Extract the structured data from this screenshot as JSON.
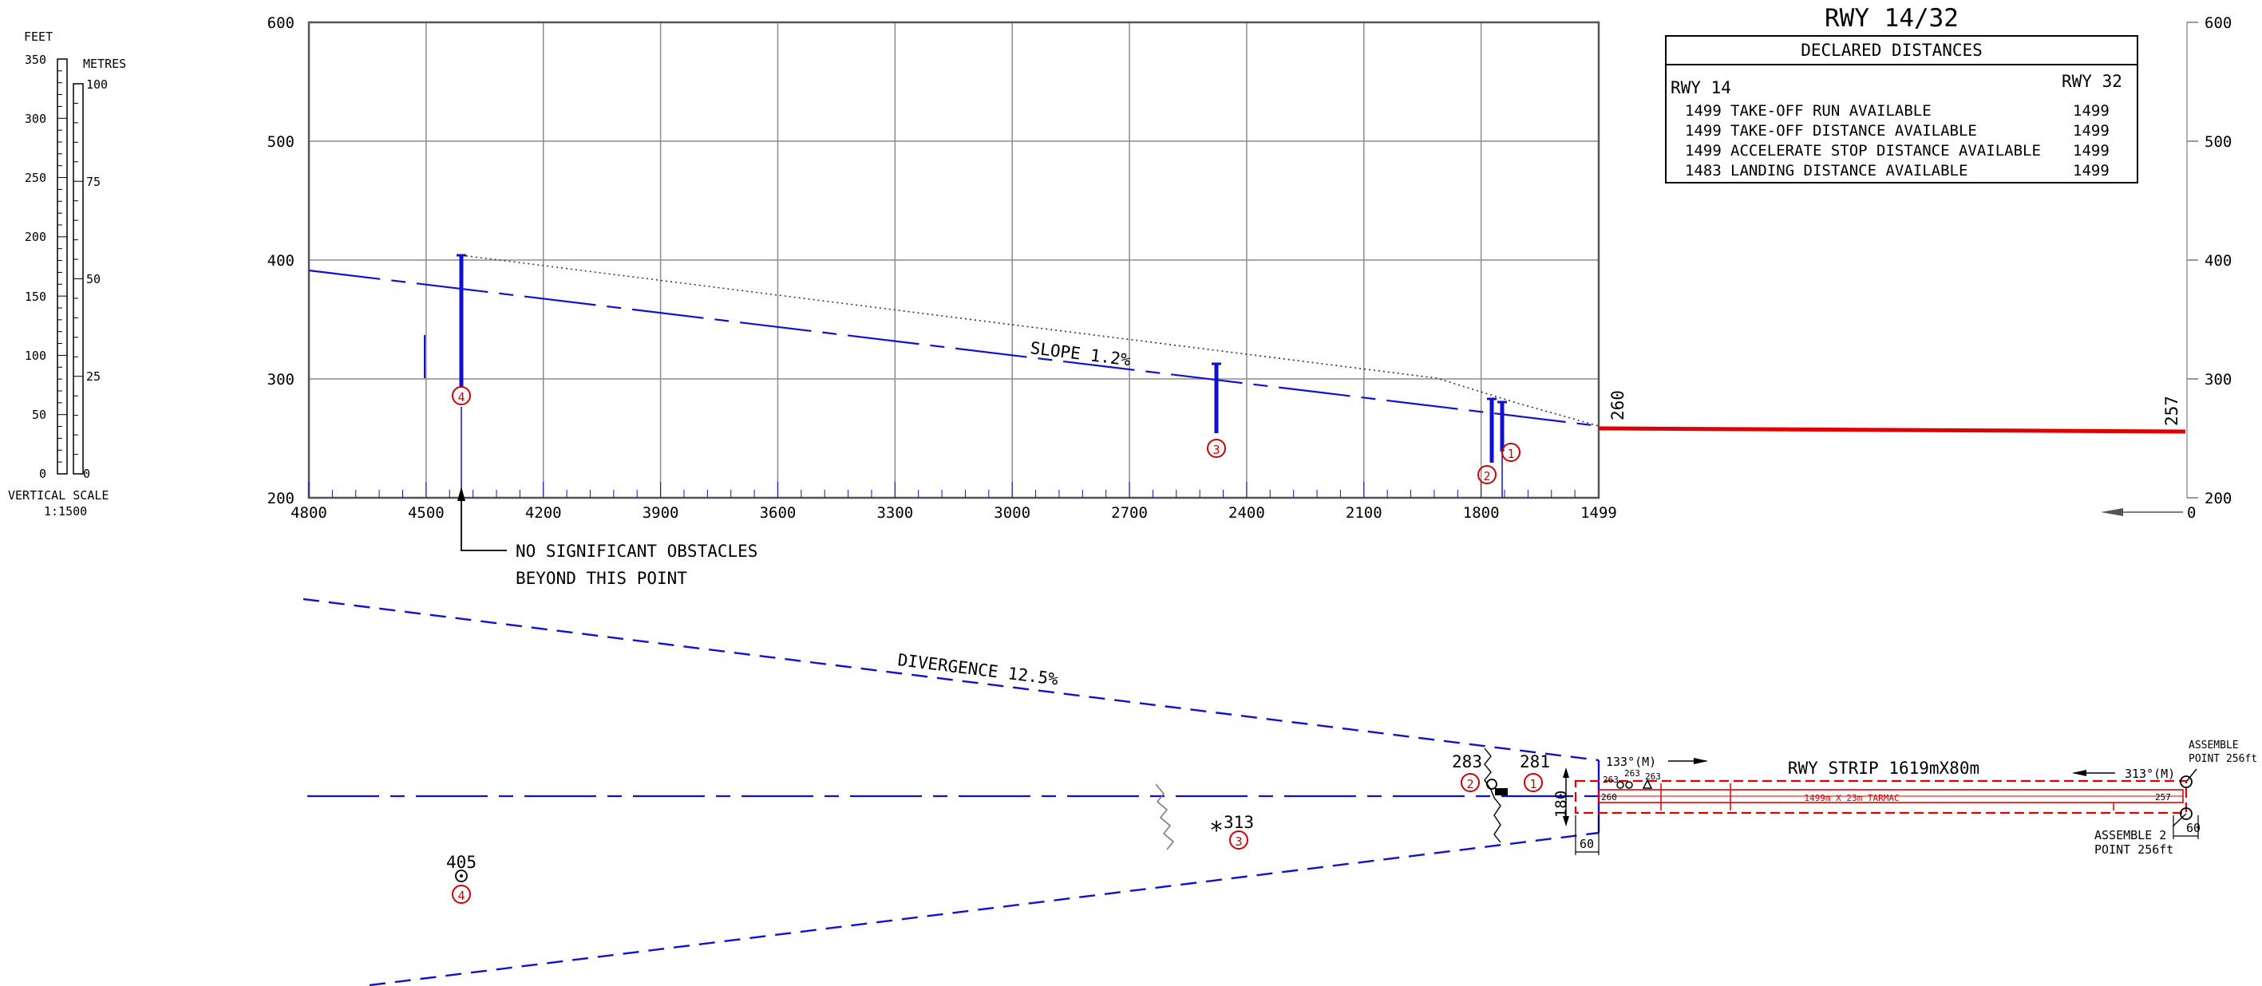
{
  "vertical_scale": {
    "feet_label": "FEET",
    "metres_label": "METRES",
    "caption": "VERTICAL SCALE",
    "ratio": "1:1500",
    "feet_ticks": [
      "350",
      "300",
      "250",
      "200",
      "150",
      "100",
      "50",
      "0"
    ],
    "metre_ticks": [
      "100",
      "75",
      "50",
      "25",
      "0"
    ]
  },
  "profile": {
    "y_ticks": [
      "600",
      "500",
      "400",
      "300",
      "200"
    ],
    "x_ticks": [
      "4800",
      "4500",
      "4200",
      "3900",
      "3600",
      "3300",
      "3000",
      "2700",
      "2400",
      "2100",
      "1800",
      "1499"
    ],
    "slope_label": "SLOPE 1.2%",
    "threshold_elev_left": "260",
    "threshold_elev_right": "257",
    "arrow_end_label": "0",
    "note_line1": "NO SIGNIFICANT OBSTACLES",
    "note_line2": "BEYOND THIS POINT",
    "obstacles": [
      {
        "id": "1",
        "distance": 1740,
        "top": 281
      },
      {
        "id": "2",
        "distance": 1775,
        "top": 283
      },
      {
        "id": "3",
        "distance": 2460,
        "top": 313
      },
      {
        "id": "4",
        "distance": 4390,
        "top": 405
      }
    ]
  },
  "declared_distances": {
    "runway_title": "RWY 14/32",
    "table_title": "DECLARED DISTANCES",
    "left_header": "RWY 14",
    "right_header": "RWY 32",
    "rows": [
      {
        "left": "1499",
        "label": "TAKE-OFF RUN AVAILABLE",
        "right": "1499"
      },
      {
        "left": "1499",
        "label": "TAKE-OFF DISTANCE AVAILABLE",
        "right": "1499"
      },
      {
        "left": "1499",
        "label": "ACCELERATE STOP DISTANCE AVAILABLE",
        "right": "1499"
      },
      {
        "left": "1483",
        "label": "LANDING DISTANCE AVAILABLE",
        "right": "1499"
      }
    ]
  },
  "plan": {
    "divergence_label": "DIVERGENCE 12.5%",
    "strip_label": "RWY STRIP 1619mX80m",
    "runway_label": "1499m X 23m TARMAC",
    "bearing_left": "133°(M)",
    "bearing_right": "313°(M)",
    "width_label": "180",
    "dim_left": "60",
    "dim_right": "60",
    "assemble1_line1": "ASSEMBLE",
    "assemble1_line2": "POINT 256ft",
    "assemble2_line1": "ASSEMBLE 2",
    "assemble2_line2": "POINT 256ft",
    "elev_260": "260",
    "elev_257": "257",
    "elev_263a": "263",
    "elev_263b": "263",
    "elev_263c": "263",
    "obstacle_labels": [
      {
        "id": "1",
        "elev": "281"
      },
      {
        "id": "2",
        "elev": "283"
      },
      {
        "id": "3",
        "elev": "313"
      },
      {
        "id": "4",
        "elev": "405"
      }
    ]
  },
  "colors": {
    "profile_blue": "#1010d0",
    "runway_red": "#e00000",
    "grid": "#8c8c8c",
    "circle_red": "#d00000"
  }
}
